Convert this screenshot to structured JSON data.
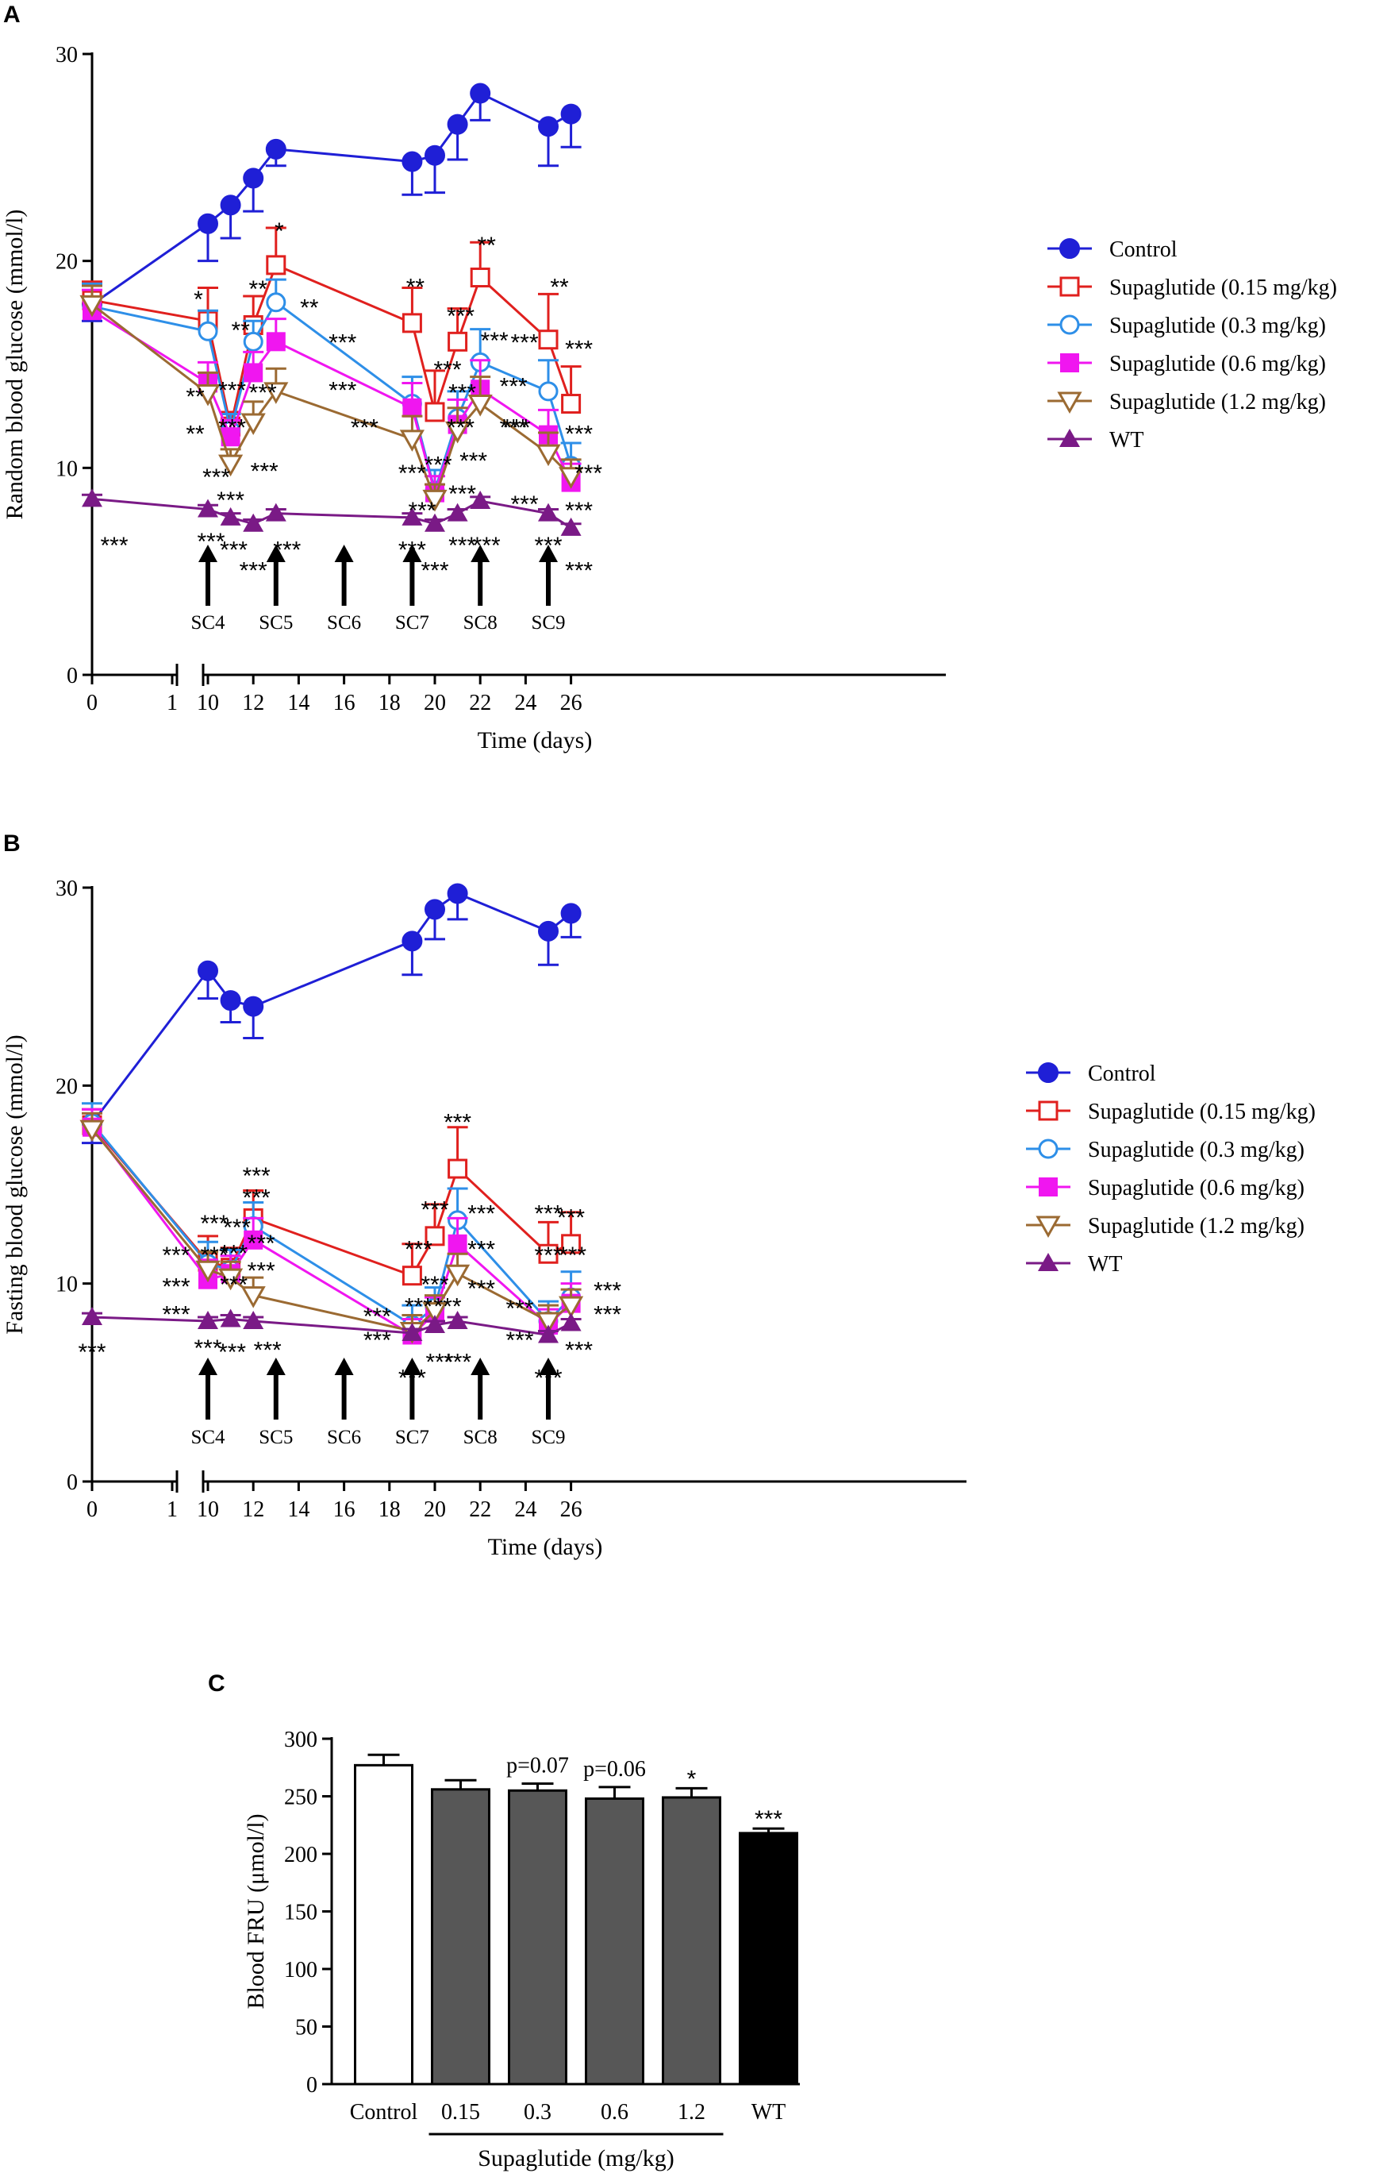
{
  "figure": {
    "panels": [
      "A",
      "B",
      "C"
    ]
  },
  "colors": {
    "control": "#1f1fd6",
    "s015": "#e0201e",
    "s03": "#2e8fe8",
    "s06": "#f016f0",
    "s12": "#9b6a32",
    "wt": "#7a1a86",
    "barGray": "#575757",
    "barBlack": "#000000"
  },
  "chart_data": [
    {
      "panel": "A",
      "type": "line",
      "title": "",
      "xlabel": "Time (days)",
      "ylabel": "Random blood glucose (mmol/l)",
      "ylim": [
        0,
        30
      ],
      "yticks": [
        "0",
        "10",
        "20",
        "30"
      ],
      "xticks": [
        "0",
        "1",
        "10",
        "12",
        "14",
        "16",
        "18",
        "20",
        "22",
        "24",
        "26"
      ],
      "x_break": [
        1,
        10
      ],
      "injections": [
        {
          "label": "SC4",
          "x": 10
        },
        {
          "label": "SC5",
          "x": 13
        },
        {
          "label": "SC6",
          "x": 16
        },
        {
          "label": "SC7",
          "x": 19
        },
        {
          "label": "SC8",
          "x": 22
        },
        {
          "label": "SC9",
          "x": 25
        }
      ],
      "x": [
        0,
        10,
        11,
        12,
        13,
        19,
        20,
        21,
        22,
        25,
        26
      ],
      "series": [
        {
          "name": "Control",
          "key": "control",
          "marker": "circle-filled",
          "values": [
            17.9,
            21.8,
            22.7,
            24.0,
            25.4,
            24.8,
            25.1,
            26.6,
            28.1,
            26.5,
            27.1
          ],
          "err": [
            0.8,
            1.8,
            1.6,
            1.6,
            0.8,
            1.6,
            1.8,
            1.7,
            1.3,
            1.9,
            1.6
          ],
          "err_dir": "down"
        },
        {
          "name": "Supaglutide (0.15 mg/kg)",
          "key": "s015",
          "marker": "square-open",
          "values": [
            18.1,
            17.1,
            12.0,
            16.9,
            19.8,
            17.0,
            12.7,
            16.1,
            19.2,
            16.2,
            13.1
          ],
          "err": [
            0.9,
            1.6,
            0.7,
            1.4,
            1.8,
            1.7,
            2.0,
            1.6,
            1.7,
            2.2,
            1.8
          ],
          "err_dir": "up"
        },
        {
          "name": "Supaglutide (0.3 mg/kg)",
          "key": "s03",
          "marker": "circle-open",
          "values": [
            17.8,
            16.6,
            11.8,
            16.1,
            18.0,
            13.1,
            8.9,
            12.4,
            15.1,
            13.7,
            10.1
          ],
          "err": [
            1.1,
            1.0,
            0.8,
            1.0,
            1.1,
            1.3,
            1.0,
            1.3,
            1.6,
            1.5,
            1.1
          ],
          "err_dir": "up"
        },
        {
          "name": "Supaglutide (0.6 mg/kg)",
          "key": "s06",
          "marker": "square-filled",
          "values": [
            17.6,
            14.1,
            11.5,
            14.6,
            16.1,
            12.9,
            8.8,
            12.1,
            13.8,
            11.6,
            9.3
          ],
          "err": [
            1.0,
            1.0,
            0.8,
            1.0,
            1.1,
            1.2,
            0.8,
            1.2,
            1.4,
            1.2,
            0.9
          ],
          "err_dir": "up"
        },
        {
          "name": "Supaglutide (1.2 mg/kg)",
          "key": "s12",
          "marker": "triangle-down-open",
          "values": [
            17.9,
            13.6,
            10.2,
            12.2,
            13.7,
            11.4,
            8.5,
            11.8,
            13.1,
            10.7,
            9.6
          ],
          "err": [
            0.9,
            1.0,
            0.7,
            1.0,
            1.1,
            1.1,
            0.7,
            1.1,
            1.3,
            1.0,
            0.8
          ],
          "err_dir": "up"
        },
        {
          "name": "WT",
          "key": "wt",
          "marker": "triangle-up-filled",
          "values": [
            8.5,
            8.0,
            7.6,
            7.3,
            7.8,
            7.6,
            7.3,
            7.8,
            8.4,
            7.8,
            7.1
          ],
          "err": [
            0.2,
            0.2,
            0.2,
            0.2,
            0.2,
            0.2,
            0.2,
            0.2,
            0.2,
            0.2,
            0.2
          ],
          "err_dir": "up"
        }
      ],
      "annotations": [
        {
          "text": "*",
          "x": 10,
          "y": 18.3,
          "dx": -12
        },
        {
          "text": "**",
          "x": 10,
          "y": 13.6,
          "dx": -16
        },
        {
          "text": "**",
          "x": 10,
          "y": 11.8,
          "dx": -16
        },
        {
          "text": "***",
          "x": 0,
          "y": 6.4,
          "dx": 28
        },
        {
          "text": "***",
          "x": 10,
          "y": 6.6,
          "dx": 4
        },
        {
          "text": "***",
          "x": 11,
          "y": 13.9,
          "dx": 2
        },
        {
          "text": "***",
          "x": 11,
          "y": 12.1,
          "dx": 2
        },
        {
          "text": "***",
          "x": 11,
          "y": 9.7,
          "dx": -18
        },
        {
          "text": "***",
          "x": 11,
          "y": 8.6,
          "dx": 0
        },
        {
          "text": "***",
          "x": 11,
          "y": 6.2,
          "dx": 4
        },
        {
          "text": "**",
          "x": 12,
          "y": 18.8,
          "dx": 6
        },
        {
          "text": "**",
          "x": 12,
          "y": 16.8,
          "dx": -16
        },
        {
          "text": "***",
          "x": 12,
          "y": 13.8,
          "dx": 12
        },
        {
          "text": "***",
          "x": 12,
          "y": 10.0,
          "dx": 14
        },
        {
          "text": "***",
          "x": 12,
          "y": 5.2,
          "dx": 0
        },
        {
          "text": "*",
          "x": 13,
          "y": 21.6,
          "dx": 4
        },
        {
          "text": "**",
          "x": 13,
          "y": 17.9,
          "dx": 42
        },
        {
          "text": "***",
          "x": 13,
          "y": 16.2,
          "dx": 84
        },
        {
          "text": "***",
          "x": 13,
          "y": 13.9,
          "dx": 84
        },
        {
          "text": "***",
          "x": 13,
          "y": 6.2,
          "dx": 14
        },
        {
          "text": "**",
          "x": 19,
          "y": 18.9,
          "dx": 4
        },
        {
          "text": "***",
          "x": 19,
          "y": 12.1,
          "dx": -60
        },
        {
          "text": "***",
          "x": 19,
          "y": 9.9,
          "dx": 0
        },
        {
          "text": "***",
          "x": 19,
          "y": 6.2,
          "dx": 0
        },
        {
          "text": "***",
          "x": 20,
          "y": 14.9,
          "dx": 16
        },
        {
          "text": "***",
          "x": 20,
          "y": 10.3,
          "dx": 4
        },
        {
          "text": "***",
          "x": 20,
          "y": 8.1,
          "dx": -16
        },
        {
          "text": "***",
          "x": 20,
          "y": 5.2,
          "dx": 0
        },
        {
          "text": "***",
          "x": 21,
          "y": 17.5,
          "dx": 4
        },
        {
          "text": "***",
          "x": 21,
          "y": 13.8,
          "dx": 6
        },
        {
          "text": "***",
          "x": 21,
          "y": 12.1,
          "dx": 4
        },
        {
          "text": "***",
          "x": 21,
          "y": 10.5,
          "dx": 20
        },
        {
          "text": "***",
          "x": 21,
          "y": 8.9,
          "dx": 6
        },
        {
          "text": "***",
          "x": 21,
          "y": 6.4,
          "dx": 6
        },
        {
          "text": "**",
          "x": 22,
          "y": 20.9,
          "dx": 8
        },
        {
          "text": "***",
          "x": 22,
          "y": 16.3,
          "dx": 18
        },
        {
          "text": "***",
          "x": 22,
          "y": 14.1,
          "dx": 42
        },
        {
          "text": "***",
          "x": 22,
          "y": 12.1,
          "dx": 42
        },
        {
          "text": "***",
          "x": 22,
          "y": 6.4,
          "dx": 8
        },
        {
          "text": "**",
          "x": 25,
          "y": 18.9,
          "dx": 14
        },
        {
          "text": "***",
          "x": 25,
          "y": 16.2,
          "dx": -30
        },
        {
          "text": "***",
          "x": 25,
          "y": 12.1,
          "dx": -40
        },
        {
          "text": "***",
          "x": 25,
          "y": 8.4,
          "dx": -30
        },
        {
          "text": "***",
          "x": 25,
          "y": 6.4,
          "dx": 0
        },
        {
          "text": "***",
          "x": 26,
          "y": 15.9,
          "dx": 10
        },
        {
          "text": "***",
          "x": 26,
          "y": 11.8,
          "dx": 10
        },
        {
          "text": "***",
          "x": 26,
          "y": 9.9,
          "dx": 22
        },
        {
          "text": "***",
          "x": 26,
          "y": 8.1,
          "dx": 10
        },
        {
          "text": "***",
          "x": 26,
          "y": 5.2,
          "dx": 10
        }
      ]
    },
    {
      "panel": "B",
      "type": "line",
      "title": "",
      "xlabel": "Time (days)",
      "ylabel": "Fasting blood glucose (mmol/l)",
      "ylim": [
        0,
        30
      ],
      "yticks": [
        "0",
        "10",
        "20",
        "30"
      ],
      "xticks": [
        "0",
        "1",
        "10",
        "12",
        "14",
        "16",
        "18",
        "20",
        "22",
        "24",
        "26"
      ],
      "x_break": [
        1,
        10
      ],
      "injections": [
        {
          "label": "SC4",
          "x": 10
        },
        {
          "label": "SC5",
          "x": 13
        },
        {
          "label": "SC6",
          "x": 16
        },
        {
          "label": "SC7",
          "x": 19
        },
        {
          "label": "SC8",
          "x": 22
        },
        {
          "label": "SC9",
          "x": 25
        }
      ],
      "x": [
        0,
        10,
        11,
        12,
        19,
        20,
        21,
        25,
        26
      ],
      "series": [
        {
          "name": "Control",
          "key": "control",
          "marker": "circle-filled",
          "values": [
            18.1,
            25.8,
            24.3,
            24.0,
            27.3,
            28.9,
            29.7,
            27.8,
            28.7
          ],
          "err": [
            1.0,
            1.4,
            1.1,
            1.6,
            1.7,
            1.5,
            1.3,
            1.7,
            1.2
          ],
          "err_dir": "down"
        },
        {
          "name": "Supaglutide (0.15 mg/kg)",
          "key": "s015",
          "marker": "square-open",
          "values": [
            18.0,
            11.1,
            10.8,
            13.3,
            10.4,
            12.4,
            15.8,
            11.5,
            12.0
          ],
          "err": [
            0.8,
            1.3,
            1.0,
            1.4,
            1.6,
            1.6,
            2.1,
            1.6,
            1.6
          ],
          "err_dir": "up"
        },
        {
          "name": "Supaglutide (0.3 mg/kg)",
          "key": "s03",
          "marker": "circle-open",
          "values": [
            18.1,
            11.0,
            10.7,
            12.9,
            7.9,
            8.8,
            13.2,
            8.1,
            9.3
          ],
          "err": [
            1.0,
            1.1,
            1.0,
            1.2,
            1.0,
            1.0,
            1.6,
            1.0,
            1.3
          ],
          "err_dir": "up"
        },
        {
          "name": "Supaglutide (0.6 mg/kg)",
          "key": "s06",
          "marker": "square-filled",
          "values": [
            17.9,
            10.2,
            10.5,
            12.2,
            7.4,
            8.5,
            12.0,
            7.9,
            9.0
          ],
          "err": [
            0.9,
            1.0,
            0.9,
            1.1,
            0.8,
            0.8,
            1.3,
            0.8,
            1.0
          ],
          "err_dir": "up"
        },
        {
          "name": "Supaglutide (1.2 mg/kg)",
          "key": "s12",
          "marker": "triangle-down-open",
          "values": [
            17.8,
            10.7,
            10.3,
            9.4,
            7.6,
            8.6,
            10.5,
            8.1,
            8.9
          ],
          "err": [
            0.8,
            0.9,
            0.8,
            0.9,
            0.8,
            0.8,
            1.0,
            0.8,
            0.8
          ],
          "err_dir": "up"
        },
        {
          "name": "WT",
          "key": "wt",
          "marker": "triangle-up-filled",
          "values": [
            8.3,
            8.1,
            8.2,
            8.1,
            7.5,
            7.9,
            8.1,
            7.4,
            8.0
          ],
          "err": [
            0.2,
            0.2,
            0.2,
            0.2,
            0.2,
            0.2,
            0.2,
            0.2,
            0.2
          ],
          "err_dir": "up"
        }
      ],
      "annotations": [
        {
          "text": "***",
          "x": 0,
          "y": 6.7,
          "dx": 0
        },
        {
          "text": "***",
          "x": 10,
          "y": 11.6,
          "dx": -40
        },
        {
          "text": "***",
          "x": 10,
          "y": 10.0,
          "dx": -40
        },
        {
          "text": "***",
          "x": 10,
          "y": 8.6,
          "dx": -40
        },
        {
          "text": "***",
          "x": 10,
          "y": 13.2,
          "dx": 8
        },
        {
          "text": "***",
          "x": 10,
          "y": 11.6,
          "dx": 8
        },
        {
          "text": "***",
          "x": 10,
          "y": 6.9,
          "dx": 0
        },
        {
          "text": "***",
          "x": 11,
          "y": 13.0,
          "dx": 8
        },
        {
          "text": "***",
          "x": 11,
          "y": 11.7,
          "dx": 4
        },
        {
          "text": "***",
          "x": 11,
          "y": 10.1,
          "dx": 4
        },
        {
          "text": "***",
          "x": 11,
          "y": 6.7,
          "dx": 2
        },
        {
          "text": "***",
          "x": 12,
          "y": 15.6,
          "dx": 4
        },
        {
          "text": "***",
          "x": 12,
          "y": 14.5,
          "dx": 4
        },
        {
          "text": "***",
          "x": 12,
          "y": 12.2,
          "dx": 10
        },
        {
          "text": "***",
          "x": 12,
          "y": 10.8,
          "dx": 10
        },
        {
          "text": "***",
          "x": 12,
          "y": 6.8,
          "dx": 18
        },
        {
          "text": "***",
          "x": 19,
          "y": 11.9,
          "dx": 8
        },
        {
          "text": "***",
          "x": 19,
          "y": 8.5,
          "dx": -44
        },
        {
          "text": "***",
          "x": 19,
          "y": 7.3,
          "dx": -44
        },
        {
          "text": "***",
          "x": 19,
          "y": 9.0,
          "dx": 8
        },
        {
          "text": "***",
          "x": 19,
          "y": 5.4,
          "dx": 0
        },
        {
          "text": "***",
          "x": 20,
          "y": 13.9,
          "dx": 0
        },
        {
          "text": "***",
          "x": 20,
          "y": 10.1,
          "dx": 0
        },
        {
          "text": "***",
          "x": 20,
          "y": 9.0,
          "dx": 16
        },
        {
          "text": "***",
          "x": 20,
          "y": 6.2,
          "dx": 6
        },
        {
          "text": "***",
          "x": 21,
          "y": 18.3,
          "dx": 0
        },
        {
          "text": "***",
          "x": 21,
          "y": 13.7,
          "dx": 30
        },
        {
          "text": "***",
          "x": 21,
          "y": 11.9,
          "dx": 30
        },
        {
          "text": "***",
          "x": 21,
          "y": 9.9,
          "dx": 30
        },
        {
          "text": "***",
          "x": 21,
          "y": 6.2,
          "dx": 0
        },
        {
          "text": "***",
          "x": 25,
          "y": 13.7,
          "dx": 0
        },
        {
          "text": "***",
          "x": 25,
          "y": 11.6,
          "dx": 0
        },
        {
          "text": "***",
          "x": 25,
          "y": 8.9,
          "dx": -36
        },
        {
          "text": "***",
          "x": 25,
          "y": 7.3,
          "dx": -36
        },
        {
          "text": "***",
          "x": 25,
          "y": 5.4,
          "dx": 0
        },
        {
          "text": "***",
          "x": 26,
          "y": 13.5,
          "dx": 0
        },
        {
          "text": "***",
          "x": 26,
          "y": 11.6,
          "dx": 2
        },
        {
          "text": "***",
          "x": 26,
          "y": 9.8,
          "dx": 46
        },
        {
          "text": "***",
          "x": 26,
          "y": 8.6,
          "dx": 46
        },
        {
          "text": "***",
          "x": 26,
          "y": 6.8,
          "dx": 10
        }
      ]
    },
    {
      "panel": "C",
      "type": "bar",
      "title": "",
      "xlabel": "Supaglutide (mg/kg)",
      "ylabel": "Blood FRU (μmol/l)",
      "ylim": [
        0,
        300
      ],
      "yticks": [
        "0",
        "50",
        "100",
        "150",
        "200",
        "250",
        "300"
      ],
      "categories": [
        "Control",
        "0.15",
        "0.3",
        "0.6",
        "1.2",
        "WT"
      ],
      "values": [
        277,
        256,
        255,
        248,
        249,
        218
      ],
      "errors": [
        9,
        8,
        6,
        10,
        8,
        4
      ],
      "fills": [
        "white",
        "gray",
        "gray",
        "gray",
        "gray",
        "black"
      ],
      "labels": [
        "",
        "",
        "p=0.07",
        "p=0.06",
        "*",
        "***"
      ],
      "bracket": {
        "from": "0.15",
        "to": "1.2"
      }
    }
  ]
}
